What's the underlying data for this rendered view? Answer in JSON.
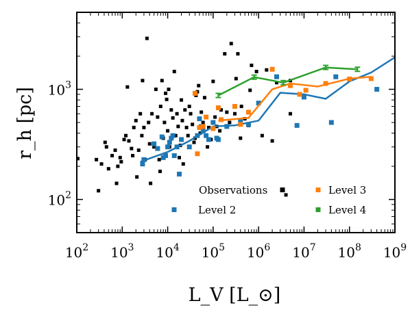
{
  "chart_data": {
    "type": "scatter",
    "xlabel": "L_V [L_⊙]",
    "ylabel": "r_h [pc]",
    "xscale": "log",
    "yscale": "log",
    "xlim": [
      100,
      1000000000
    ],
    "ylim": [
      50,
      5000
    ],
    "grid": false,
    "legend_position": "bottom-right inside axes, two columns",
    "x_ticks": [
      {
        "value": 100,
        "base": "10",
        "exp": "2"
      },
      {
        "value": 1000,
        "base": "10",
        "exp": "3"
      },
      {
        "value": 10000,
        "base": "10",
        "exp": "4"
      },
      {
        "value": 100000,
        "base": "10",
        "exp": "5"
      },
      {
        "value": 1000000,
        "base": "10",
        "exp": "6"
      },
      {
        "value": 10000000,
        "base": "10",
        "exp": "7"
      },
      {
        "value": 100000000,
        "base": "10",
        "exp": "8"
      },
      {
        "value": 1000000000,
        "base": "10",
        "exp": "9"
      }
    ],
    "y_ticks": [
      {
        "value": 100,
        "base": "10",
        "exp": "2"
      },
      {
        "value": 1000,
        "base": "10",
        "exp": "3"
      }
    ],
    "series": [
      {
        "name": "Observations",
        "color": "#000000",
        "kind": "scatter",
        "points": [
          [
            105,
            235
          ],
          [
            270,
            230
          ],
          [
            300,
            120
          ],
          [
            350,
            210
          ],
          [
            420,
            330
          ],
          [
            450,
            300
          ],
          [
            500,
            190
          ],
          [
            600,
            250
          ],
          [
            700,
            280
          ],
          [
            750,
            140
          ],
          [
            800,
            200
          ],
          [
            900,
            240
          ],
          [
            950,
            220
          ],
          [
            1100,
            350
          ],
          [
            1200,
            380
          ],
          [
            1300,
            1050
          ],
          [
            1400,
            340
          ],
          [
            1600,
            290
          ],
          [
            1700,
            250
          ],
          [
            1800,
            450
          ],
          [
            2000,
            520
          ],
          [
            2100,
            160
          ],
          [
            2300,
            280
          ],
          [
            2500,
            600
          ],
          [
            2700,
            380
          ],
          [
            2800,
            1200
          ],
          [
            3000,
            450
          ],
          [
            3200,
            230
          ],
          [
            3500,
            2900
          ],
          [
            3800,
            500
          ],
          [
            4000,
            320
          ],
          [
            4200,
            140
          ],
          [
            4500,
            600
          ],
          [
            5000,
            300
          ],
          [
            5500,
            1000
          ],
          [
            6000,
            560
          ],
          [
            6500,
            230
          ],
          [
            6800,
            180
          ],
          [
            7000,
            700
          ],
          [
            7500,
            1200
          ],
          [
            8000,
            360
          ],
          [
            8500,
            500
          ],
          [
            9000,
            920
          ],
          [
            9500,
            810
          ],
          [
            10000,
            420
          ],
          [
            10500,
            1000
          ],
          [
            11000,
            300
          ],
          [
            12000,
            650
          ],
          [
            13000,
            550
          ],
          [
            14000,
            1450
          ],
          [
            15000,
            380
          ],
          [
            16000,
            600
          ],
          [
            17000,
            460
          ],
          [
            18000,
            240
          ],
          [
            19000,
            310
          ],
          [
            20000,
            800
          ],
          [
            21000,
            520
          ],
          [
            22000,
            210
          ],
          [
            24000,
            650
          ],
          [
            26000,
            450
          ],
          [
            28000,
            380
          ],
          [
            30000,
            700
          ],
          [
            32000,
            600
          ],
          [
            35000,
            480
          ],
          [
            38000,
            330
          ],
          [
            40000,
            360
          ],
          [
            42000,
            880
          ],
          [
            45000,
            950
          ],
          [
            48000,
            1080
          ],
          [
            52000,
            400
          ],
          [
            55000,
            620
          ],
          [
            60000,
            500
          ],
          [
            65000,
            840
          ],
          [
            70000,
            560
          ],
          [
            75000,
            300
          ],
          [
            80000,
            450
          ],
          [
            90000,
            350
          ],
          [
            100000,
            1180
          ],
          [
            110000,
            560
          ],
          [
            120000,
            460
          ],
          [
            140000,
            420
          ],
          [
            150000,
            650
          ],
          [
            180000,
            2100
          ],
          [
            200000,
            620
          ],
          [
            230000,
            500
          ],
          [
            250000,
            2600
          ],
          [
            300000,
            600
          ],
          [
            320000,
            1250
          ],
          [
            350000,
            2100
          ],
          [
            400000,
            360
          ],
          [
            420000,
            700
          ],
          [
            500000,
            540
          ],
          [
            600000,
            470
          ],
          [
            650000,
            980
          ],
          [
            700000,
            1650
          ],
          [
            900000,
            1450
          ],
          [
            1200000,
            380
          ],
          [
            1500000,
            1500
          ],
          [
            2000000,
            340
          ],
          [
            2500000,
            1150
          ],
          [
            4000000,
            110
          ],
          [
            5000000,
            1200
          ],
          [
            5000000,
            600
          ]
        ]
      },
      {
        "name": "Level 2",
        "color": "#1f77b4",
        "kind": "scatter+line",
        "points": [
          [
            2800,
            210
          ],
          [
            3000,
            230
          ],
          [
            5000,
            320
          ],
          [
            6000,
            290
          ],
          [
            7500,
            370
          ],
          [
            8000,
            240
          ],
          [
            9000,
            250
          ],
          [
            10000,
            300
          ],
          [
            11000,
            330
          ],
          [
            12000,
            360
          ],
          [
            13000,
            380
          ],
          [
            14000,
            250
          ],
          [
            16000,
            300
          ],
          [
            18000,
            170
          ],
          [
            20000,
            350
          ],
          [
            30000,
            300
          ],
          [
            45000,
            380
          ],
          [
            50000,
            540
          ],
          [
            55000,
            460
          ],
          [
            60000,
            420
          ],
          [
            70000,
            380
          ],
          [
            80000,
            350
          ],
          [
            100000,
            500
          ],
          [
            120000,
            360
          ],
          [
            130000,
            350
          ],
          [
            200000,
            460
          ],
          [
            400000,
            520
          ],
          [
            600000,
            480
          ],
          [
            1000000,
            750
          ],
          [
            2500000,
            1300
          ],
          [
            7000000,
            470
          ],
          [
            10000000,
            850
          ],
          [
            40000000,
            500
          ],
          [
            50000000,
            1300
          ],
          [
            400000000,
            1000
          ]
        ],
        "line": [
          [
            2500,
            220
          ],
          [
            10000,
            270
          ],
          [
            30000,
            340
          ],
          [
            100000,
            460
          ],
          [
            300000,
            470
          ],
          [
            1000000,
            520
          ],
          [
            3000000,
            930
          ],
          [
            10000000,
            900
          ],
          [
            30000000,
            820
          ],
          [
            100000000,
            1180
          ],
          [
            300000000,
            1420
          ],
          [
            1000000000,
            1950
          ]
        ]
      },
      {
        "name": "Level 3",
        "color": "#ff7f0e",
        "kind": "scatter+line",
        "points": [
          [
            40000,
            920
          ],
          [
            45000,
            260
          ],
          [
            50000,
            450
          ],
          [
            60000,
            460
          ],
          [
            70000,
            560
          ],
          [
            100000,
            440
          ],
          [
            130000,
            680
          ],
          [
            150000,
            530
          ],
          [
            300000,
            700
          ],
          [
            400000,
            480
          ],
          [
            600000,
            620
          ],
          [
            2000000,
            1520
          ],
          [
            5000000,
            1080
          ],
          [
            8000000,
            900
          ],
          [
            11000000,
            980
          ],
          [
            30000000,
            1130
          ],
          [
            100000000,
            1240
          ],
          [
            300000000,
            1250
          ]
        ],
        "line": [
          [
            130000,
            520
          ],
          [
            600000,
            550
          ],
          [
            2000000,
            1000
          ],
          [
            5000000,
            1130
          ],
          [
            20000000,
            1060
          ],
          [
            100000000,
            1250
          ],
          [
            300000000,
            1300
          ]
        ]
      },
      {
        "name": "Level 4",
        "color": "#2ca02c",
        "kind": "line+errorbars",
        "points": [],
        "line": [
          [
            130000,
            880
          ],
          [
            800000,
            1290
          ],
          [
            3500000,
            1150
          ],
          [
            30000000,
            1580
          ],
          [
            150000000,
            1520
          ]
        ]
      }
    ]
  }
}
